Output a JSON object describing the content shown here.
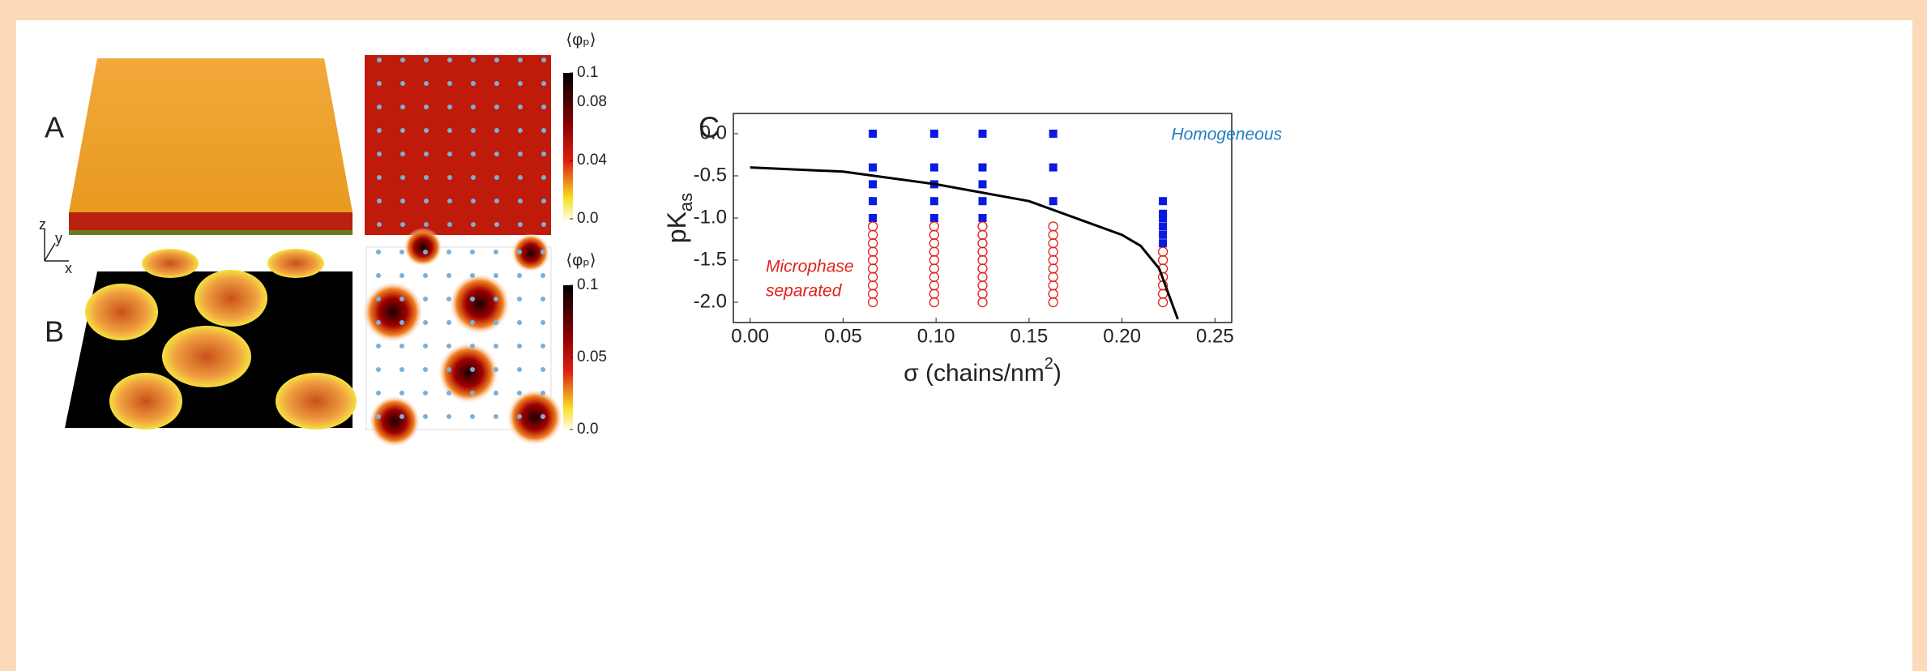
{
  "panel_labels": [
    "A",
    "B"
  ],
  "axes_glyph": [
    "z",
    "y",
    "x"
  ],
  "colorbars": [
    {
      "title": "⟨φₚ⟩",
      "lim": [
        0,
        0.1
      ],
      "ticks": [
        0.1,
        0.08,
        0.04,
        {
          "value": 0,
          "label": "0.0"
        }
      ]
    },
    {
      "title": "⟨φₚ⟩",
      "lim": [
        0,
        0.1
      ],
      "ticks": [
        0.1,
        0.05,
        {
          "value": 0,
          "label": "0.0"
        }
      ]
    }
  ],
  "chart_data": {
    "type": "scatter",
    "panel_label": "C",
    "ylabel": {
      "main": "pK",
      "sub": "as"
    },
    "xlabel": [
      "σ (chains/nm",
      "2",
      ")"
    ],
    "xlim": [
      -0.009,
      0.259
    ],
    "ylim": [
      -2.24,
      0.24
    ],
    "xticks": [
      {
        "value": 0,
        "label": "0.00"
      },
      {
        "value": 0.05,
        "label": "0.05"
      },
      {
        "value": 0.1,
        "label": "0.10"
      },
      {
        "value": 0.15,
        "label": "0.15"
      },
      {
        "value": 0.2,
        "label": "0.20"
      },
      {
        "value": 0.25,
        "label": "0.25"
      }
    ],
    "yticks": [
      {
        "value": 0,
        "label": "0.0"
      },
      -0.5,
      {
        "value": -1,
        "label": "-1.0"
      },
      -1.5,
      {
        "value": -2,
        "label": "-2.0"
      }
    ],
    "annotations": [
      {
        "text": "Homogeneous",
        "color": "#1f7fc4"
      },
      {
        "text": "Microphase",
        "color": "#e0201b"
      },
      {
        "text": "separated",
        "color": "#e0201b"
      }
    ],
    "series": [
      {
        "marker": "square",
        "color": "#0a1adf",
        "x": [
          0.066,
          0.066,
          0.066,
          0.066,
          0.066,
          0.099,
          0.099,
          0.099,
          0.099,
          0.099,
          0.125,
          0.125,
          0.125,
          0.125,
          0.125,
          0.163,
          0.163,
          0.163,
          0.222,
          0.222,
          0.222,
          0.222,
          0.222,
          0.222
        ],
        "values": [
          0,
          -0.4,
          -0.6,
          -0.8,
          -1.0,
          0,
          -0.4,
          -0.6,
          -0.8,
          -1.0,
          0,
          -0.4,
          -0.6,
          -0.8,
          -1.0,
          0,
          -0.4,
          -0.8,
          -0.8,
          -0.95,
          -1.0,
          -1.1,
          -1.2,
          -1.3
        ]
      },
      {
        "marker": "circle",
        "color": "#e0201b",
        "x": [
          0.066,
          0.066,
          0.066,
          0.066,
          0.066,
          0.066,
          0.066,
          0.066,
          0.066,
          0.066,
          0.099,
          0.099,
          0.099,
          0.099,
          0.099,
          0.099,
          0.099,
          0.099,
          0.099,
          0.099,
          0.125,
          0.125,
          0.125,
          0.125,
          0.125,
          0.125,
          0.125,
          0.125,
          0.125,
          0.125,
          0.163,
          0.163,
          0.163,
          0.163,
          0.163,
          0.163,
          0.163,
          0.163,
          0.163,
          0.163,
          0.222,
          0.222,
          0.222,
          0.222,
          0.222,
          0.222,
          0.222
        ],
        "values": [
          -1.1,
          -1.2,
          -1.3,
          -1.4,
          -1.5,
          -1.6,
          -1.7,
          -1.8,
          -1.9,
          -2.0,
          -1.1,
          -1.2,
          -1.3,
          -1.4,
          -1.5,
          -1.6,
          -1.7,
          -1.8,
          -1.9,
          -2.0,
          -1.1,
          -1.2,
          -1.3,
          -1.4,
          -1.5,
          -1.6,
          -1.7,
          -1.8,
          -1.9,
          -2.0,
          -1.1,
          -1.2,
          -1.3,
          -1.4,
          -1.5,
          -1.6,
          -1.7,
          -1.8,
          -1.9,
          -2.0,
          -1.4,
          -1.5,
          -1.6,
          -1.7,
          -1.8,
          -1.9,
          -2.0
        ]
      },
      {
        "marker": "line",
        "color": "#000000",
        "x": [
          0,
          0.05,
          0.1,
          0.15,
          0.2,
          0.21,
          0.22,
          0.23
        ],
        "values": [
          -0.4,
          -0.45,
          -0.6,
          -0.8,
          -1.2,
          -1.33,
          -1.6,
          -2.2
        ]
      }
    ]
  }
}
